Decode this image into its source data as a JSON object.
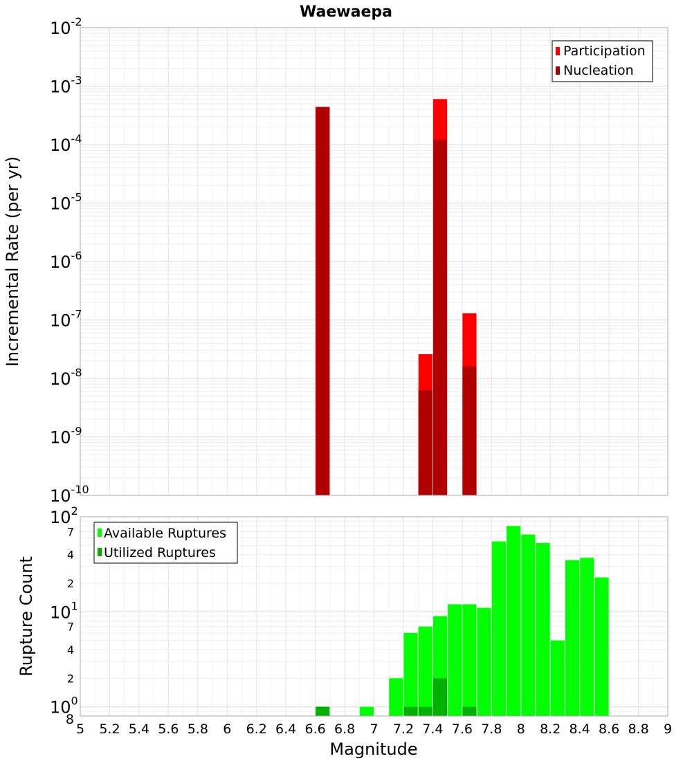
{
  "chart_data": [
    {
      "type": "bar",
      "title": "Waewaepa",
      "xlabel": "",
      "ylabel": "Incremental Rate (per yr)",
      "yscale": "log",
      "xlim": [
        5,
        9
      ],
      "ylim": [
        1e-10,
        0.01
      ],
      "grid": true,
      "legend_position": "top-right",
      "bar_width": 0.095,
      "series": [
        {
          "name": "Participation",
          "color": "#ff0000",
          "x": [
            6.65,
            7.35,
            7.45,
            7.65
          ],
          "values": [
            0.00044,
            2.6e-08,
            0.0006,
            1.3e-07
          ]
        },
        {
          "name": "Nucleation",
          "color": "#b00000",
          "x": [
            6.65,
            7.35,
            7.45,
            7.65
          ],
          "values": [
            0.00044,
            6.3e-09,
            0.00012,
            1.6e-08
          ]
        }
      ],
      "y_tick_labels": [
        {
          "base": "10",
          "exp": "-10"
        },
        {
          "base": "10",
          "exp": "-9"
        },
        {
          "base": "10",
          "exp": "-8"
        },
        {
          "base": "10",
          "exp": "-7"
        },
        {
          "base": "10",
          "exp": "-6"
        },
        {
          "base": "10",
          "exp": "-5"
        },
        {
          "base": "10",
          "exp": "-4"
        },
        {
          "base": "10",
          "exp": "-3"
        },
        {
          "base": "10",
          "exp": "-2"
        }
      ]
    },
    {
      "type": "bar",
      "title": "",
      "xlabel": "Magnitude",
      "ylabel": "Rupture Count",
      "yscale": "log",
      "xlim": [
        5,
        9
      ],
      "ylim": [
        0.8,
        100
      ],
      "grid": true,
      "legend_position": "top-left",
      "bar_width": 0.095,
      "series": [
        {
          "name": "Available Ruptures",
          "color": "#00ff00",
          "x": [
            6.65,
            6.95,
            7.15,
            7.25,
            7.35,
            7.45,
            7.55,
            7.65,
            7.75,
            7.85,
            7.95,
            8.05,
            8.15,
            8.25,
            8.35,
            8.45,
            8.55
          ],
          "values": [
            1,
            1,
            2,
            6,
            7,
            9,
            12,
            12,
            11,
            55,
            80,
            65,
            53,
            5,
            35,
            37,
            23
          ]
        },
        {
          "name": "Utilized Ruptures",
          "color": "#00b000",
          "x": [
            6.65,
            7.25,
            7.35,
            7.45,
            7.65
          ],
          "values": [
            1,
            1,
            1,
            2,
            1
          ]
        }
      ],
      "x_tick_labels": [
        "5",
        "5.2",
        "5.4",
        "5.6",
        "5.8",
        "6",
        "6.2",
        "6.4",
        "6.6",
        "6.8",
        "7",
        "7.2",
        "7.4",
        "7.6",
        "7.8",
        "8",
        "8.2",
        "8.4",
        "8.6",
        "8.8",
        "9"
      ],
      "y_major_tick_labels": [
        {
          "base": "10",
          "exp": "0"
        },
        {
          "base": "10",
          "exp": "1"
        },
        {
          "base": "10",
          "exp": "2"
        }
      ],
      "y_minor_tick_labels": [
        "8",
        "2",
        "4",
        "7",
        "2",
        "4",
        "7"
      ]
    }
  ]
}
